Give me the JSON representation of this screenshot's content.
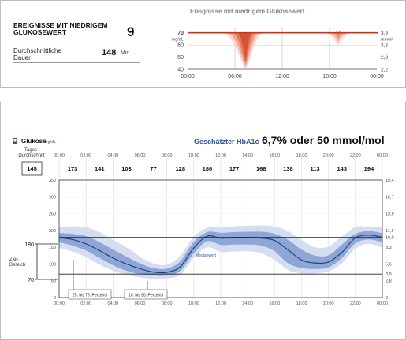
{
  "colors": {
    "accent_red": "#c0391b",
    "blue_dark": "#1d3b78",
    "band_light": "#d5def0",
    "band_mid": "#a8bbe0",
    "band_dark": "#7f98cf",
    "title_blue": "#2f5496"
  },
  "summary": {
    "events_label": "EREIGNISSE MIT NIEDRIGEM GLUKOSEWERT",
    "events_value": "9",
    "duration_label": "Durchschnittliche Dauer",
    "duration_value": "148",
    "duration_unit": "Min."
  },
  "low_events_chart": {
    "title": "Ereignisse mit niedrigem Glukosewert",
    "left_unit": "mg/dL",
    "right_unit": "mmol/l",
    "left_ticks": [
      "70",
      "60",
      "50",
      "40"
    ],
    "right_ticks": [
      "3,9",
      "3,3",
      "2,8",
      "2,2"
    ],
    "x_ticks": [
      "00:00",
      "06:00",
      "12:00",
      "18:00",
      "00:00"
    ],
    "threshold": 70
  },
  "agp": {
    "glucose_label": "Glukose",
    "glucose_unit": "mg/dL",
    "daily_avg_label": "Tages-Durchschnitt",
    "daily_avg_value": "145",
    "hba1c_label": "Geschätzter HbA1c",
    "hba1c_value": "6,7% oder 50 mmol/mol",
    "target_label": "Ziel-Bereich",
    "target_low": "70",
    "target_high": "180",
    "median_label": "Medianwert",
    "legend_25_75": "25. bis 75. Perzentil",
    "legend_10_90": "10. bis 90. Perzentil",
    "top_time_ticks": [
      "00:00",
      "02:00",
      "04:00",
      "06:00",
      "08:00",
      "10:00",
      "12:00",
      "14:00",
      "16:00",
      "18:00",
      "20:00",
      "22:00",
      "00:00"
    ],
    "bottom_time_ticks": [
      "00:00",
      "02:00",
      "04:00",
      "06:00",
      "08:00",
      "10:00",
      "12:00",
      "14:00",
      "16:00",
      "18:00",
      "20:00",
      "22:00",
      "00:00"
    ],
    "left_y_ticks": [
      "350",
      "300",
      "250",
      "200",
      "150",
      "100",
      "50",
      "0"
    ],
    "right_y_ticks": [
      "19,4",
      "16,7",
      "13,9",
      "11,1",
      "10,0",
      "8,3",
      "5,6",
      "3,9",
      "2,8",
      "0"
    ]
  },
  "chart_data": [
    {
      "type": "area",
      "title": "Ereignisse mit niedrigem Glukosewert",
      "xlabel": "",
      "ylabel": "mg/dL",
      "xlim": [
        "00:00",
        "24:00"
      ],
      "ylim": [
        40,
        75
      ],
      "threshold": 70,
      "threshold_right": "3,9",
      "events": [
        {
          "start_hour": 4.5,
          "end_hour": 9.6,
          "min_mg_dl": 40
        },
        {
          "start_hour": 17.6,
          "end_hour": 20.6,
          "min_mg_dl": 59
        }
      ]
    },
    {
      "type": "line",
      "title": "Glukose",
      "xlabel": "",
      "ylabel": "mg/dL",
      "ylim": [
        0,
        350
      ],
      "target_range": [
        70,
        180
      ],
      "hourly_averages": {
        "x": [
          "01:00",
          "03:00",
          "05:00",
          "07:00",
          "09:00",
          "11:00",
          "13:00",
          "15:00",
          "17:00",
          "19:00",
          "21:00",
          "23:00"
        ],
        "values": [
          173,
          141,
          103,
          77,
          128,
          186,
          177,
          168,
          138,
          113,
          143,
          194
        ]
      },
      "x": [
        0,
        1,
        2,
        3,
        4,
        5,
        6,
        7,
        8,
        9,
        10,
        11,
        12,
        13,
        14,
        15,
        16,
        17,
        18,
        19,
        20,
        21,
        22,
        23,
        24
      ],
      "series": [
        {
          "name": "Medianwert",
          "values": [
            178,
            173,
            160,
            140,
            118,
            100,
            86,
            76,
            75,
            92,
            148,
            183,
            177,
            178,
            178,
            177,
            170,
            142,
            112,
            103,
            106,
            135,
            178,
            186,
            180
          ]
        },
        {
          "name": "25. bis 75. Perzentil",
          "low": [
            165,
            155,
            140,
            118,
            96,
            80,
            70,
            66,
            66,
            80,
            132,
            168,
            157,
            158,
            158,
            155,
            138,
            102,
            88,
            85,
            90,
            118,
            162,
            173,
            165
          ],
          "high": [
            192,
            190,
            183,
            165,
            143,
            122,
            102,
            88,
            86,
            108,
            166,
            195,
            193,
            195,
            196,
            196,
            190,
            172,
            143,
            125,
            126,
            158,
            190,
            198,
            192
          ]
        },
        {
          "name": "10. bis 90. Perzentil",
          "low": [
            148,
            137,
            120,
            98,
            80,
            68,
            60,
            56,
            57,
            68,
            118,
            150,
            136,
            137,
            138,
            132,
            112,
            82,
            72,
            72,
            78,
            102,
            146,
            160,
            148
          ],
          "high": [
            210,
            212,
            210,
            195,
            172,
            150,
            122,
            102,
            98,
            125,
            182,
            208,
            210,
            212,
            214,
            215,
            212,
            198,
            172,
            150,
            152,
            182,
            210,
            212,
            210
          ]
        }
      ]
    }
  ]
}
